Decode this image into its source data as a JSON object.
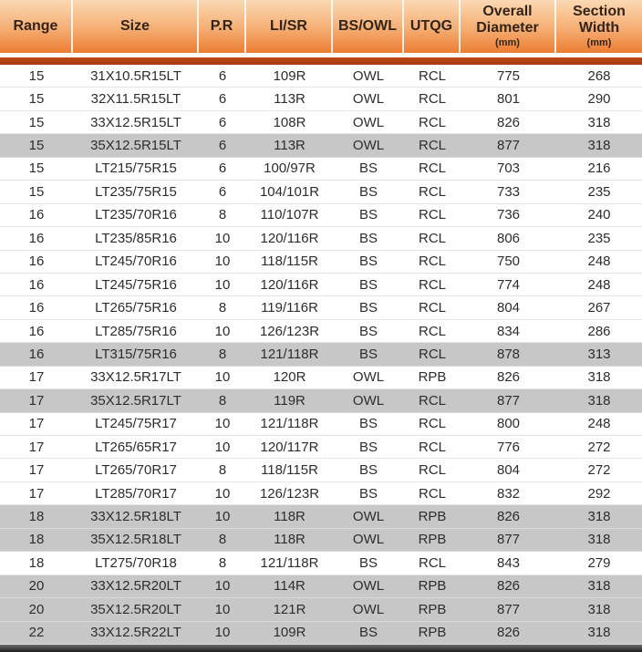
{
  "chart_data": {
    "type": "table",
    "columns": [
      {
        "key": "range",
        "label": "Range",
        "unit": ""
      },
      {
        "key": "size",
        "label": "Size",
        "unit": ""
      },
      {
        "key": "pr",
        "label": "P.R",
        "unit": ""
      },
      {
        "key": "lisr",
        "label": "LI/SR",
        "unit": ""
      },
      {
        "key": "bsowl",
        "label": "BS/OWL",
        "unit": ""
      },
      {
        "key": "utqg",
        "label": "UTQG",
        "unit": ""
      },
      {
        "key": "overall-diameter",
        "label": "Overall Diameter",
        "unit": "(mm)"
      },
      {
        "key": "section-width",
        "label": "Section Width",
        "unit": "(mm)"
      }
    ],
    "rows": [
      {
        "highlight": false,
        "cells": [
          "15",
          "31X10.5R15LT",
          "6",
          "109R",
          "OWL",
          "RCL",
          "775",
          "268"
        ]
      },
      {
        "highlight": false,
        "cells": [
          "15",
          "32X11.5R15LT",
          "6",
          "113R",
          "OWL",
          "RCL",
          "801",
          "290"
        ]
      },
      {
        "highlight": false,
        "cells": [
          "15",
          "33X12.5R15LT",
          "6",
          "108R",
          "OWL",
          "RCL",
          "826",
          "318"
        ]
      },
      {
        "highlight": true,
        "cells": [
          "15",
          "35X12.5R15LT",
          "6",
          "113R",
          "OWL",
          "RCL",
          "877",
          "318"
        ]
      },
      {
        "highlight": false,
        "cells": [
          "15",
          "LT215/75R15",
          "6",
          "100/97R",
          "BS",
          "RCL",
          "703",
          "216"
        ]
      },
      {
        "highlight": false,
        "cells": [
          "15",
          "LT235/75R15",
          "6",
          "104/101R",
          "BS",
          "RCL",
          "733",
          "235"
        ]
      },
      {
        "highlight": false,
        "cells": [
          "16",
          "LT235/70R16",
          "8",
          "110/107R",
          "BS",
          "RCL",
          "736",
          "240"
        ]
      },
      {
        "highlight": false,
        "cells": [
          "16",
          "LT235/85R16",
          "10",
          "120/116R",
          "BS",
          "RCL",
          "806",
          "235"
        ]
      },
      {
        "highlight": false,
        "cells": [
          "16",
          "LT245/70R16",
          "10",
          "118/115R",
          "BS",
          "RCL",
          "750",
          "248"
        ]
      },
      {
        "highlight": false,
        "cells": [
          "16",
          "LT245/75R16",
          "10",
          "120/116R",
          "BS",
          "RCL",
          "774",
          "248"
        ]
      },
      {
        "highlight": false,
        "cells": [
          "16",
          "LT265/75R16",
          "8",
          "119/116R",
          "BS",
          "RCL",
          "804",
          "267"
        ]
      },
      {
        "highlight": false,
        "cells": [
          "16",
          "LT285/75R16",
          "10",
          "126/123R",
          "BS",
          "RCL",
          "834",
          "286"
        ]
      },
      {
        "highlight": true,
        "cells": [
          "16",
          "LT315/75R16",
          "8",
          "121/118R",
          "BS",
          "RCL",
          "878",
          "313"
        ]
      },
      {
        "highlight": false,
        "cells": [
          "17",
          "33X12.5R17LT",
          "10",
          "120R",
          "OWL",
          "RPB",
          "826",
          "318"
        ]
      },
      {
        "highlight": true,
        "cells": [
          "17",
          "35X12.5R17LT",
          "8",
          "119R",
          "OWL",
          "RCL",
          "877",
          "318"
        ]
      },
      {
        "highlight": false,
        "cells": [
          "17",
          "LT245/75R17",
          "10",
          "121/118R",
          "BS",
          "RCL",
          "800",
          "248"
        ]
      },
      {
        "highlight": false,
        "cells": [
          "17",
          "LT265/65R17",
          "10",
          "120/117R",
          "BS",
          "RCL",
          "776",
          "272"
        ]
      },
      {
        "highlight": false,
        "cells": [
          "17",
          "LT265/70R17",
          "8",
          "118/115R",
          "BS",
          "RCL",
          "804",
          "272"
        ]
      },
      {
        "highlight": false,
        "cells": [
          "17",
          "LT285/70R17",
          "10",
          "126/123R",
          "BS",
          "RCL",
          "832",
          "292"
        ]
      },
      {
        "highlight": true,
        "cells": [
          "18",
          "33X12.5R18LT",
          "10",
          "118R",
          "OWL",
          "RPB",
          "826",
          "318"
        ]
      },
      {
        "highlight": true,
        "cells": [
          "18",
          "35X12.5R18LT",
          "8",
          "118R",
          "OWL",
          "RPB",
          "877",
          "318"
        ]
      },
      {
        "highlight": false,
        "cells": [
          "18",
          "LT275/70R18",
          "8",
          "121/118R",
          "BS",
          "RCL",
          "843",
          "279"
        ]
      },
      {
        "highlight": true,
        "cells": [
          "20",
          "33X12.5R20LT",
          "10",
          "114R",
          "OWL",
          "RPB",
          "826",
          "318"
        ]
      },
      {
        "highlight": true,
        "cells": [
          "20",
          "35X12.5R20LT",
          "10",
          "121R",
          "OWL",
          "RPB",
          "877",
          "318"
        ]
      },
      {
        "highlight": true,
        "cells": [
          "22",
          "33X12.5R22LT",
          "10",
          "109R",
          "BS",
          "RPB",
          "826",
          "318"
        ]
      }
    ]
  },
  "colors": {
    "header_gradient_top": "#fbd9b4",
    "header_gradient_bottom": "#ec7c33",
    "header_text": "#33241a",
    "accent_bar": "#a33a10",
    "row_default": "#ffffff",
    "row_highlight": "#c7c7c7",
    "body_text": "#2d2d2d",
    "footer_bar": "#1f1f1f"
  }
}
